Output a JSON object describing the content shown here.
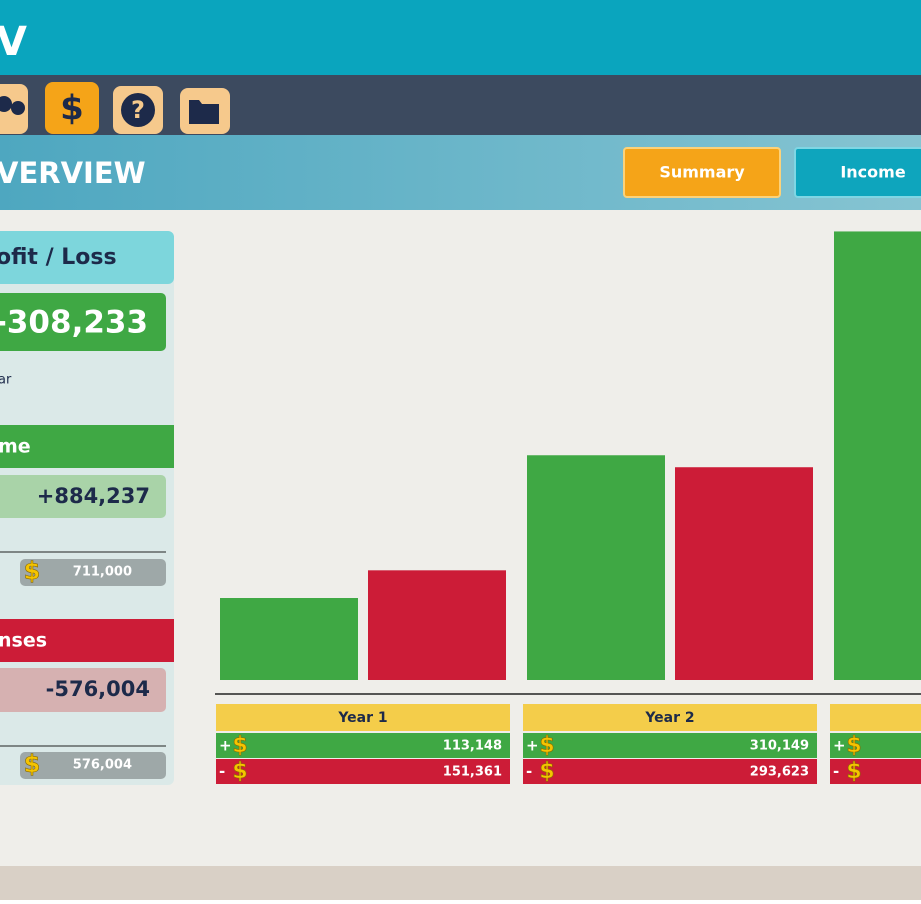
{
  "header": {
    "title": "V",
    "section": "VERVIEW",
    "buttons": [
      "Summary",
      "Income"
    ]
  },
  "tabs": {
    "finance_icon": "$",
    "help_icon": "?"
  },
  "summary": {
    "title": "ofit / Loss",
    "total": "-308,233",
    "note": "ar",
    "income": {
      "title": "me",
      "total": "+884,237",
      "detail": "711,000"
    },
    "expenses": {
      "title": "nses",
      "total": "-576,004",
      "detail": "576,004"
    }
  },
  "chart": {
    "type": "bar",
    "currency_icon": "$",
    "income_sign": "+",
    "expenses_sign": "-",
    "years": [
      {
        "label": "Year 1",
        "income": 113148,
        "income_label": "113,148",
        "expenses": 151361,
        "expenses_label": "151,361"
      },
      {
        "label": "Year 2",
        "income": 310149,
        "income_label": "310,149",
        "expenses": 293623,
        "expenses_label": "293,623"
      },
      {
        "label": null,
        "income": 619000,
        "income_label": null,
        "expenses": null,
        "expenses_label": null
      }
    ],
    "colors": {
      "income": "#3fa844",
      "expenses": "#cc1c37",
      "year": "#f4cd4a"
    }
  }
}
